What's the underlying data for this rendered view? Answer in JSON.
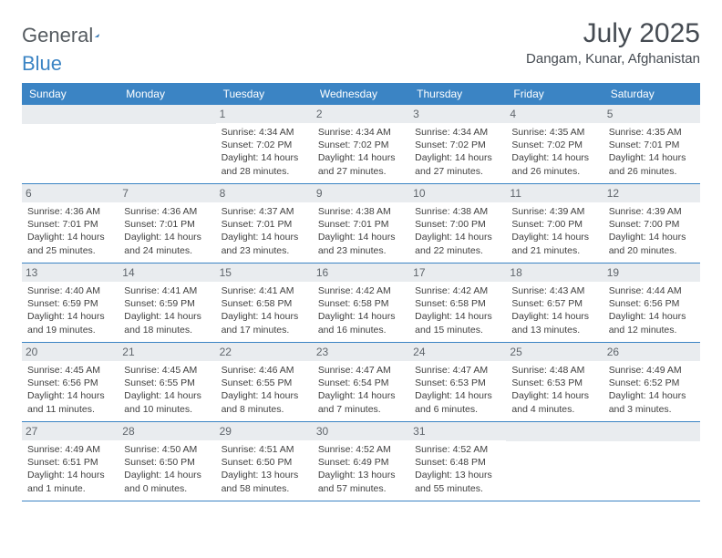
{
  "logo": {
    "text1": "General",
    "text2": "Blue"
  },
  "title": "July 2025",
  "location": "Dangam, Kunar, Afghanistan",
  "colors": {
    "header_bg": "#3b84c4",
    "header_text": "#ffffff",
    "daynum_bg": "#e9ecef",
    "border": "#3b84c4",
    "title_text": "#454b52",
    "logo_text": "#555b60"
  },
  "fonts": {
    "title_size": 30,
    "location_size": 15,
    "dayheader_size": 12,
    "daynum_size": 12,
    "info_size": 10.5,
    "logo_size": 22
  },
  "day_labels": [
    "Sunday",
    "Monday",
    "Tuesday",
    "Wednesday",
    "Thursday",
    "Friday",
    "Saturday"
  ],
  "weeks": [
    [
      {
        "day": "",
        "sunrise": "",
        "sunset": "",
        "daylight": ""
      },
      {
        "day": "",
        "sunrise": "",
        "sunset": "",
        "daylight": ""
      },
      {
        "day": "1",
        "sunrise": "Sunrise: 4:34 AM",
        "sunset": "Sunset: 7:02 PM",
        "daylight": "Daylight: 14 hours and 28 minutes."
      },
      {
        "day": "2",
        "sunrise": "Sunrise: 4:34 AM",
        "sunset": "Sunset: 7:02 PM",
        "daylight": "Daylight: 14 hours and 27 minutes."
      },
      {
        "day": "3",
        "sunrise": "Sunrise: 4:34 AM",
        "sunset": "Sunset: 7:02 PM",
        "daylight": "Daylight: 14 hours and 27 minutes."
      },
      {
        "day": "4",
        "sunrise": "Sunrise: 4:35 AM",
        "sunset": "Sunset: 7:02 PM",
        "daylight": "Daylight: 14 hours and 26 minutes."
      },
      {
        "day": "5",
        "sunrise": "Sunrise: 4:35 AM",
        "sunset": "Sunset: 7:01 PM",
        "daylight": "Daylight: 14 hours and 26 minutes."
      }
    ],
    [
      {
        "day": "6",
        "sunrise": "Sunrise: 4:36 AM",
        "sunset": "Sunset: 7:01 PM",
        "daylight": "Daylight: 14 hours and 25 minutes."
      },
      {
        "day": "7",
        "sunrise": "Sunrise: 4:36 AM",
        "sunset": "Sunset: 7:01 PM",
        "daylight": "Daylight: 14 hours and 24 minutes."
      },
      {
        "day": "8",
        "sunrise": "Sunrise: 4:37 AM",
        "sunset": "Sunset: 7:01 PM",
        "daylight": "Daylight: 14 hours and 23 minutes."
      },
      {
        "day": "9",
        "sunrise": "Sunrise: 4:38 AM",
        "sunset": "Sunset: 7:01 PM",
        "daylight": "Daylight: 14 hours and 23 minutes."
      },
      {
        "day": "10",
        "sunrise": "Sunrise: 4:38 AM",
        "sunset": "Sunset: 7:00 PM",
        "daylight": "Daylight: 14 hours and 22 minutes."
      },
      {
        "day": "11",
        "sunrise": "Sunrise: 4:39 AM",
        "sunset": "Sunset: 7:00 PM",
        "daylight": "Daylight: 14 hours and 21 minutes."
      },
      {
        "day": "12",
        "sunrise": "Sunrise: 4:39 AM",
        "sunset": "Sunset: 7:00 PM",
        "daylight": "Daylight: 14 hours and 20 minutes."
      }
    ],
    [
      {
        "day": "13",
        "sunrise": "Sunrise: 4:40 AM",
        "sunset": "Sunset: 6:59 PM",
        "daylight": "Daylight: 14 hours and 19 minutes."
      },
      {
        "day": "14",
        "sunrise": "Sunrise: 4:41 AM",
        "sunset": "Sunset: 6:59 PM",
        "daylight": "Daylight: 14 hours and 18 minutes."
      },
      {
        "day": "15",
        "sunrise": "Sunrise: 4:41 AM",
        "sunset": "Sunset: 6:58 PM",
        "daylight": "Daylight: 14 hours and 17 minutes."
      },
      {
        "day": "16",
        "sunrise": "Sunrise: 4:42 AM",
        "sunset": "Sunset: 6:58 PM",
        "daylight": "Daylight: 14 hours and 16 minutes."
      },
      {
        "day": "17",
        "sunrise": "Sunrise: 4:42 AM",
        "sunset": "Sunset: 6:58 PM",
        "daylight": "Daylight: 14 hours and 15 minutes."
      },
      {
        "day": "18",
        "sunrise": "Sunrise: 4:43 AM",
        "sunset": "Sunset: 6:57 PM",
        "daylight": "Daylight: 14 hours and 13 minutes."
      },
      {
        "day": "19",
        "sunrise": "Sunrise: 4:44 AM",
        "sunset": "Sunset: 6:56 PM",
        "daylight": "Daylight: 14 hours and 12 minutes."
      }
    ],
    [
      {
        "day": "20",
        "sunrise": "Sunrise: 4:45 AM",
        "sunset": "Sunset: 6:56 PM",
        "daylight": "Daylight: 14 hours and 11 minutes."
      },
      {
        "day": "21",
        "sunrise": "Sunrise: 4:45 AM",
        "sunset": "Sunset: 6:55 PM",
        "daylight": "Daylight: 14 hours and 10 minutes."
      },
      {
        "day": "22",
        "sunrise": "Sunrise: 4:46 AM",
        "sunset": "Sunset: 6:55 PM",
        "daylight": "Daylight: 14 hours and 8 minutes."
      },
      {
        "day": "23",
        "sunrise": "Sunrise: 4:47 AM",
        "sunset": "Sunset: 6:54 PM",
        "daylight": "Daylight: 14 hours and 7 minutes."
      },
      {
        "day": "24",
        "sunrise": "Sunrise: 4:47 AM",
        "sunset": "Sunset: 6:53 PM",
        "daylight": "Daylight: 14 hours and 6 minutes."
      },
      {
        "day": "25",
        "sunrise": "Sunrise: 4:48 AM",
        "sunset": "Sunset: 6:53 PM",
        "daylight": "Daylight: 14 hours and 4 minutes."
      },
      {
        "day": "26",
        "sunrise": "Sunrise: 4:49 AM",
        "sunset": "Sunset: 6:52 PM",
        "daylight": "Daylight: 14 hours and 3 minutes."
      }
    ],
    [
      {
        "day": "27",
        "sunrise": "Sunrise: 4:49 AM",
        "sunset": "Sunset: 6:51 PM",
        "daylight": "Daylight: 14 hours and 1 minute."
      },
      {
        "day": "28",
        "sunrise": "Sunrise: 4:50 AM",
        "sunset": "Sunset: 6:50 PM",
        "daylight": "Daylight: 14 hours and 0 minutes."
      },
      {
        "day": "29",
        "sunrise": "Sunrise: 4:51 AM",
        "sunset": "Sunset: 6:50 PM",
        "daylight": "Daylight: 13 hours and 58 minutes."
      },
      {
        "day": "30",
        "sunrise": "Sunrise: 4:52 AM",
        "sunset": "Sunset: 6:49 PM",
        "daylight": "Daylight: 13 hours and 57 minutes."
      },
      {
        "day": "31",
        "sunrise": "Sunrise: 4:52 AM",
        "sunset": "Sunset: 6:48 PM",
        "daylight": "Daylight: 13 hours and 55 minutes."
      },
      {
        "day": "",
        "sunrise": "",
        "sunset": "",
        "daylight": ""
      },
      {
        "day": "",
        "sunrise": "",
        "sunset": "",
        "daylight": ""
      }
    ]
  ]
}
